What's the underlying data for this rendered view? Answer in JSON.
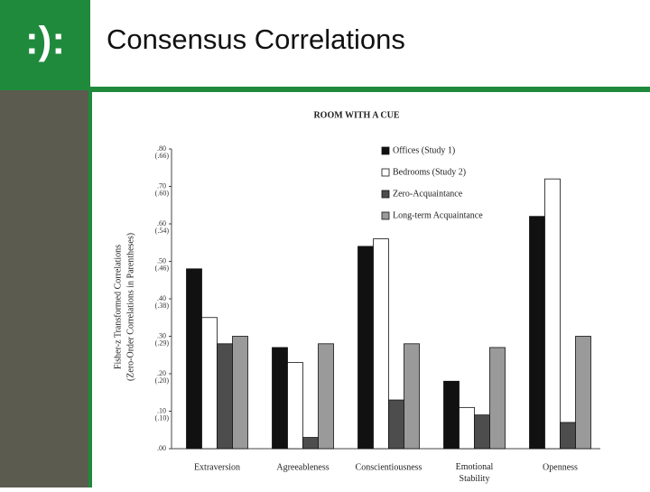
{
  "slide": {
    "logo": ":):",
    "title": "Consensus Correlations"
  },
  "chart_data": {
    "type": "bar",
    "title": "ROOM WITH A CUE",
    "ylabel": "Fisher-z Transformed Correlations",
    "ylabel_sub": "(Zero-Order Correlations in Parentheses)",
    "categories": [
      "Extraversion",
      "Agreeableness",
      "Conscientiousness",
      "Emotional Stability",
      "Openness"
    ],
    "series": [
      {
        "name": "Offices (Study 1)",
        "color": "#111111",
        "values": [
          0.48,
          0.27,
          0.54,
          0.18,
          0.62
        ]
      },
      {
        "name": "Bedrooms (Study 2)",
        "color": "#ffffff",
        "values": [
          0.35,
          0.23,
          0.56,
          0.11,
          0.72
        ]
      },
      {
        "name": "Zero-Acquaintance",
        "color": "#4d4d4d",
        "values": [
          0.28,
          0.03,
          0.13,
          0.09,
          0.07
        ]
      },
      {
        "name": "Long-term Acquaintance",
        "color": "#9a9a9a",
        "values": [
          0.3,
          0.28,
          0.28,
          0.27,
          0.3
        ]
      }
    ],
    "ylim": [
      0,
      0.8
    ],
    "yticks": [
      {
        "value": 0,
        "label": ".00"
      },
      {
        "value": 0.1,
        "label": ".10"
      },
      {
        "value": 0.2,
        "label": ".20"
      },
      {
        "value": 0.3,
        "label": ".30"
      },
      {
        "value": 0.4,
        "label": ".40"
      },
      {
        "value": 0.5,
        "label": ".50"
      },
      {
        "value": 0.6,
        "label": ".60"
      },
      {
        "value": 0.7,
        "label": ".70"
      },
      {
        "value": 0.8,
        "label": ".80"
      }
    ],
    "ytick_zero_order": [
      null,
      "(.10)",
      "(.20)",
      "(.29)",
      "(.38)",
      "(.46)",
      "(.54)",
      "(.60)",
      "(.66)"
    ]
  }
}
